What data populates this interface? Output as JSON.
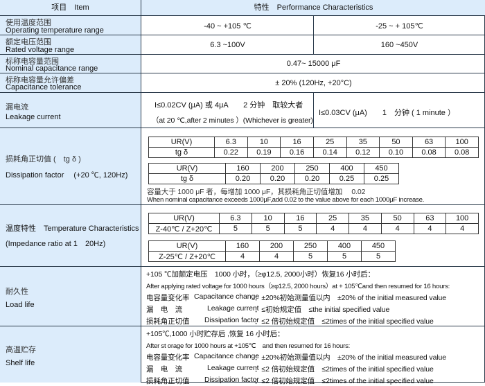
{
  "header": {
    "item": "项目　Item",
    "characteristics": "特性　Performance Characteristics"
  },
  "operating_temp": {
    "zh": "使用温度范围",
    "en": "Operating temperature range",
    "values": [
      "-40 ~ +105 ℃",
      "-25 ~ + 105℃"
    ]
  },
  "rated_voltage": {
    "zh": "额定电压范围",
    "en": "Rated voltage range",
    "values": [
      "6.3 ~100V",
      "160 ~450V"
    ]
  },
  "capacitance_range": {
    "zh": "标称电容量范围",
    "en": "Nominal  capacitance range",
    "value": "0.47~ 15000 μF"
  },
  "tolerance": {
    "zh": "标称电容量允许偏差",
    "en": "Capacitance tolerance",
    "value": "± 20% (120Hz, +20°C)"
  },
  "leakage": {
    "zh": "漏电流",
    "en": "Leakage current",
    "left_line1": "I≤0.02CV (μA)  或  4μA　　2 分钟　取较大者",
    "left_line2": "（at 20 ℃,after 2  minutes ）(Whichever is greater)",
    "right": "I≤0.03CV (μA)　　1　分钟 ( 1 minute ）"
  },
  "dissipation": {
    "zh": "损耗角正切值 (　tg δ )",
    "en": "Dissipation factor　 (+20 ℃, 120Hz)",
    "table1": {
      "header": "UR(V)",
      "row_label": "tg δ",
      "voltages": [
        "6.3",
        "10",
        "16",
        "25",
        "35",
        "50",
        "63",
        "100"
      ],
      "values": [
        "0.22",
        "0.19",
        "0.16",
        "0.14",
        "0.12",
        "0.10",
        "0.08",
        "0.08"
      ]
    },
    "table2": {
      "header": "UR(V)",
      "row_label": "tg δ",
      "voltages": [
        "160",
        "200",
        "250",
        "400",
        "450"
      ],
      "values": [
        "0.20",
        "0.20",
        "0.20",
        "0.25",
        "0.25"
      ]
    },
    "note_zh": "容量大于  1000 μF 者，每增加  1000 μF，其损耗角正切值增加　 0.02",
    "note_en": "When nominal capacitance exceeds 1000μF,add 0.02 to the value above for each 1000μF increase."
  },
  "temperature": {
    "zh_en": "温度特性　Temperature Characteristics",
    "sub": "(Impedance ratio at 1　20Hz)",
    "table1": {
      "header": "UR(V)",
      "row_label": "Z-40℃ / Z+20℃",
      "voltages": [
        "6.3",
        "10",
        "16",
        "25",
        "35",
        "50",
        "63",
        "100"
      ],
      "values": [
        "5",
        "5",
        "5",
        "4",
        "4",
        "4",
        "4",
        "4"
      ]
    },
    "table2": {
      "header": "UR(V)",
      "row_label": "Z-25℃ / Z+20℃",
      "voltages": [
        "160",
        "200",
        "250",
        "400",
        "450"
      ],
      "values": [
        "4",
        "4",
        "5",
        "5",
        "5"
      ]
    }
  },
  "load_life": {
    "zh": "耐久性",
    "en": "Load life",
    "lines": [
      "+105 ℃加额定电压　1000  小时，（≥φ12.5, 2000小时）恢复16  小时后：",
      "After applying rated voltage for 1000 hours（≥φ12.5, 2000 hours）at + 105℃and then resumed for 16 hours:"
    ],
    "items": [
      {
        "zh": "电容量变化率",
        "en": "Capacitance change",
        "spec": "：±20%初始测量值以内　±20% of the initial  measured value"
      },
      {
        "zh": "漏　电　流",
        "en": "Leakage current",
        "spec": "：≤初始规定值　≤the initial specified value"
      },
      {
        "zh": "损耗角正切值",
        "en": "Dissipation factor",
        "spec": "：≤2 倍初始规定值　≤2times of the initial specified value"
      }
    ]
  },
  "shelf_life": {
    "zh": "高温贮存",
    "en": "Shelf life",
    "lines": [
      "+105℃,1000  小时贮存后 ,恢复  16  小时后：",
      "After st orage for 1000 hours at +105℃　and then resumed for 16 hours:"
    ],
    "items": [
      {
        "zh": "电容量变化率",
        "en": "Capacitance change",
        "spec": "：±20%初始测量值以内　±20% of the initial  measured value"
      },
      {
        "zh": "漏　电　流",
        "en": "Leakage current",
        "spec": "：≤2 倍初始规定值　≤2times of the initial specified value"
      },
      {
        "zh": "损耗角正切值",
        "en": "Dissipation factor",
        "spec": "：≤2 倍初始规定值　≤2times of the initial specified value"
      }
    ]
  }
}
